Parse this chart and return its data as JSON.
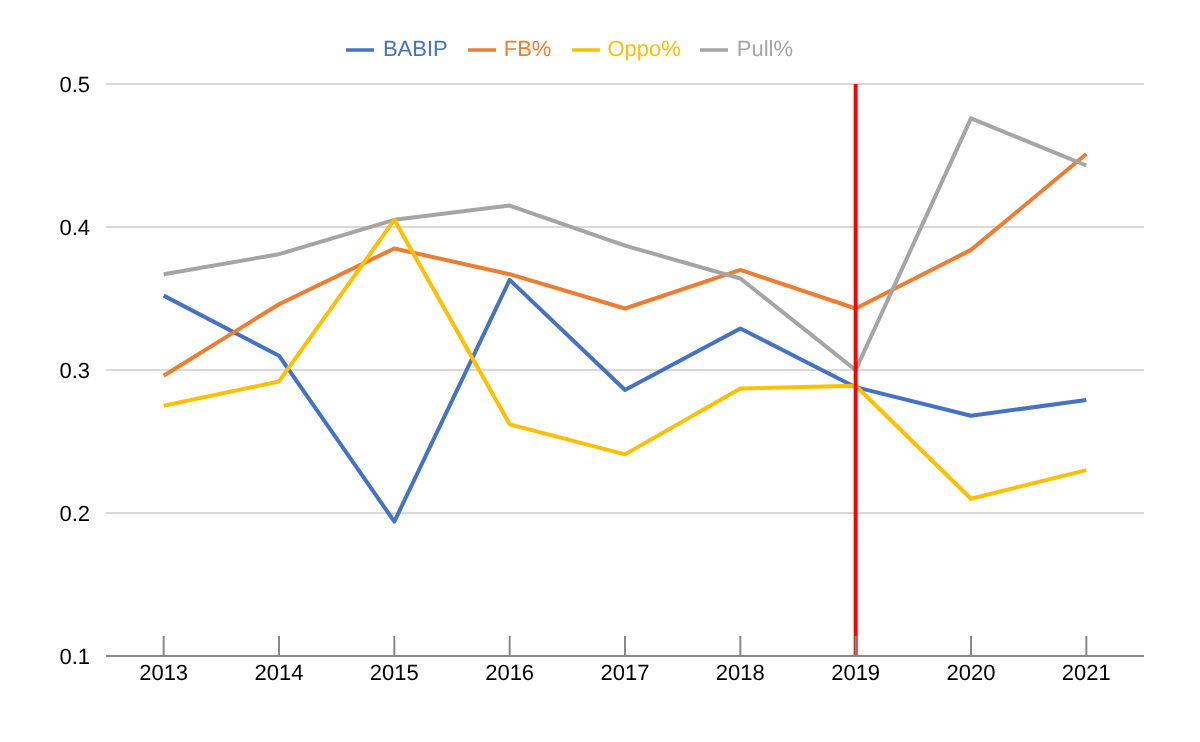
{
  "chart_data": {
    "type": "line",
    "x": [
      2013,
      2014,
      2015,
      2016,
      2017,
      2018,
      2019,
      2020,
      2021
    ],
    "xlim": [
      2012.5,
      2021.5
    ],
    "xticks": [
      2013,
      2014,
      2015,
      2016,
      2017,
      2018,
      2019,
      2020,
      2021
    ],
    "ylim": [
      0.1,
      0.5
    ],
    "yticks": [
      0.1,
      0.2,
      0.3,
      0.4,
      0.5
    ],
    "grid": "y",
    "legend": "top",
    "marker": "none",
    "line_style": "solid",
    "series": [
      {
        "name": "BABIP",
        "color": "#4472c4",
        "values": [
          0.352,
          0.31,
          0.194,
          0.363,
          0.286,
          0.329,
          0.288,
          0.268,
          0.279
        ]
      },
      {
        "name": "FB%",
        "color": "#ed7d31",
        "values": [
          0.296,
          0.346,
          0.385,
          0.367,
          0.343,
          0.37,
          0.343,
          0.384,
          0.451
        ]
      },
      {
        "name": "Pull%",
        "color": "#a5a5a5",
        "values": [
          0.367,
          0.381,
          0.405,
          0.415,
          0.387,
          0.364,
          0.3,
          0.476,
          0.443
        ]
      },
      {
        "name": "Oppo%",
        "color": "#ffc000",
        "values": [
          0.275,
          0.292,
          0.405,
          0.262,
          0.241,
          0.287,
          0.289,
          0.21,
          0.23
        ]
      }
    ],
    "ref_lines": [
      {
        "axis": "x",
        "value": 2019,
        "color": "#ff0000",
        "line_style": "solid"
      }
    ]
  }
}
